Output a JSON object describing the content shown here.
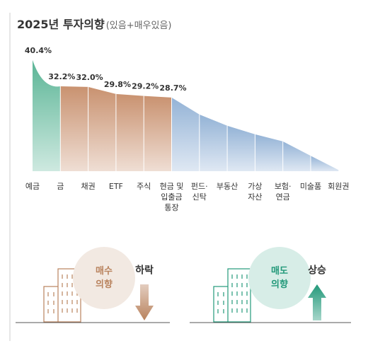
{
  "chart_data": {
    "type": "area",
    "title": "2025년 투자의향",
    "subtitle": "(있음+매우있음)",
    "categories": [
      "예금",
      "금",
      "채권",
      "ETF",
      "주식",
      "현금 및\n입출금\n통장",
      "펀드·\n신탁",
      "부동산",
      "가상\n자산",
      "보험·\n연금",
      "미술품",
      "회원권"
    ],
    "values": [
      40.4,
      32.2,
      32.0,
      29.8,
      29.2,
      28.7,
      23.4,
      19.9,
      17.2,
      15.0,
      10.5,
      6.1
    ],
    "value_labels": [
      "40.4%",
      "32.2%",
      "32.0%",
      "29.8%",
      "29.2%",
      "28.7%",
      null,
      null,
      null,
      null,
      null,
      null
    ],
    "colors": [
      "#5bb596",
      "#c99270",
      "#c99270",
      "#c99270",
      "#c99270",
      "#94b3d6",
      "#94b3d6",
      "#94b3d6",
      "#94b3d6",
      "#94b3d6",
      "#94b3d6",
      "#94b3d6"
    ],
    "ylim": [
      5.7,
      45.9
    ]
  },
  "infographics": [
    {
      "circle": "매수\n의향",
      "trend": "하락",
      "color": "#b9835e"
    },
    {
      "circle": "매도\n의향",
      "trend": "상승",
      "color": "#23997a"
    }
  ]
}
